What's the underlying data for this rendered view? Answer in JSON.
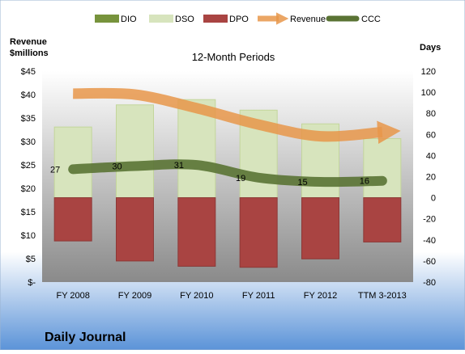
{
  "chart_data": {
    "type": "bar",
    "title": "12-Month Periods",
    "footer": "Daily Journal",
    "categories": [
      "FY 2008",
      "FY 2009",
      "FY 2010",
      "FY 2011",
      "FY 2012",
      "TTM 3-2013"
    ],
    "left_axis": {
      "label_line1": "Revenue",
      "label_line2": "$millions",
      "ylim": [
        0,
        45
      ],
      "ticks": [
        {
          "value": 0,
          "label": "$-"
        },
        {
          "value": 5,
          "label": "$5"
        },
        {
          "value": 10,
          "label": "$10"
        },
        {
          "value": 15,
          "label": "$15"
        },
        {
          "value": 20,
          "label": "$20"
        },
        {
          "value": 25,
          "label": "$25"
        },
        {
          "value": 30,
          "label": "$30"
        },
        {
          "value": 35,
          "label": "$35"
        },
        {
          "value": 40,
          "label": "$40"
        },
        {
          "value": 45,
          "label": "$45"
        }
      ]
    },
    "right_axis": {
      "label": "Days",
      "ylim": [
        -80,
        120
      ],
      "ticks": [
        {
          "value": -80,
          "label": "-80"
        },
        {
          "value": -60,
          "label": "-60"
        },
        {
          "value": -40,
          "label": "-40"
        },
        {
          "value": -20,
          "label": "-20"
        },
        {
          "value": 0,
          "label": "0"
        },
        {
          "value": 20,
          "label": "20"
        },
        {
          "value": 40,
          "label": "40"
        },
        {
          "value": 60,
          "label": "60"
        },
        {
          "value": 80,
          "label": "80"
        },
        {
          "value": 100,
          "label": "100"
        },
        {
          "value": 120,
          "label": "120"
        }
      ]
    },
    "legend_position": "top",
    "series": [
      {
        "name": "DIO",
        "type": "bar",
        "axis": "right",
        "color": "#77933c",
        "values": [
          0,
          0,
          0,
          0,
          0,
          0
        ]
      },
      {
        "name": "DSO",
        "type": "bar",
        "axis": "right",
        "color": "#d7e4bd",
        "values": [
          67,
          88,
          93,
          83,
          70,
          56
        ]
      },
      {
        "name": "DPO",
        "type": "bar",
        "axis": "right",
        "color": "#a94442",
        "values": [
          -41,
          -60,
          -65,
          -66,
          -58,
          -42
        ]
      },
      {
        "name": "Revenue",
        "type": "line",
        "axis": "left",
        "color": "#e8964a",
        "values": [
          40.2,
          40.0,
          37.1,
          33.6,
          31.1,
          32.0
        ]
      },
      {
        "name": "CCC",
        "type": "line",
        "axis": "right",
        "color": "#5a7334",
        "values": [
          27,
          30,
          31,
          19,
          15,
          16
        ],
        "labels": [
          "27",
          "30",
          "31",
          "19",
          "15",
          "16"
        ]
      }
    ]
  }
}
